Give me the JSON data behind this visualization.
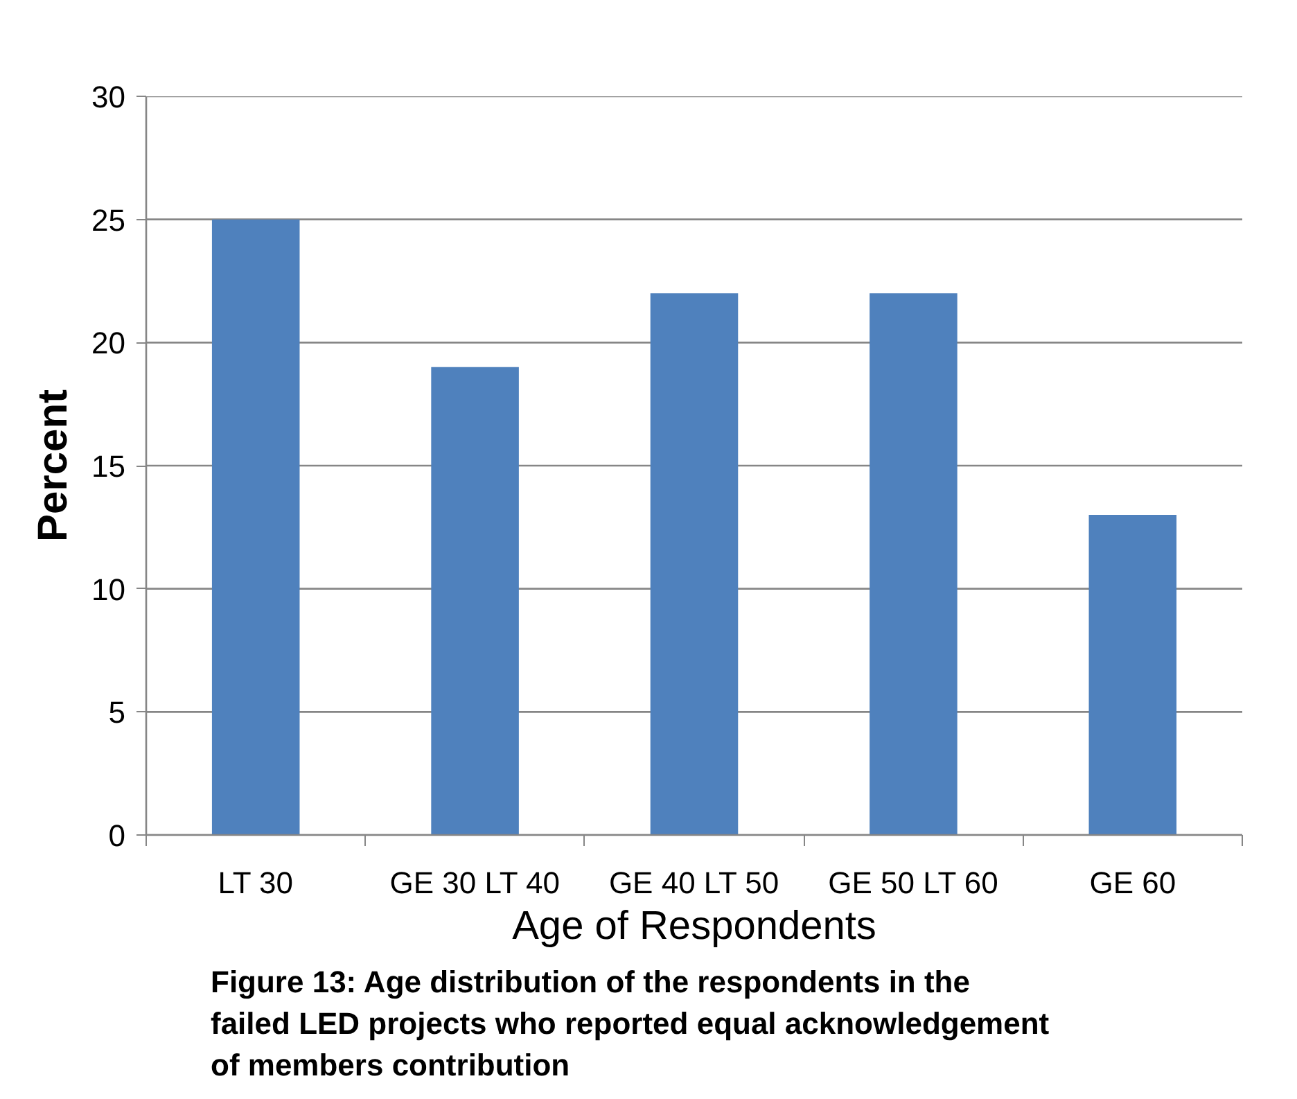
{
  "chart_data": {
    "type": "bar",
    "categories": [
      "LT 30",
      "GE 30 LT 40",
      "GE 40 LT 50",
      "GE 50 LT 60",
      "GE 60"
    ],
    "values": [
      25,
      19,
      22,
      22,
      13
    ],
    "color": "#4f81bd",
    "xlabel": "Age of Respondents",
    "ylabel": "Percent",
    "ylim": [
      0,
      30
    ],
    "yticks": [
      0,
      5,
      10,
      15,
      20,
      25,
      30
    ],
    "grid": "y",
    "annotations": [
      "Figure 13: Age distribution of the respondents in the failed LED projects who reported equal acknowledgement of members contribution"
    ]
  }
}
